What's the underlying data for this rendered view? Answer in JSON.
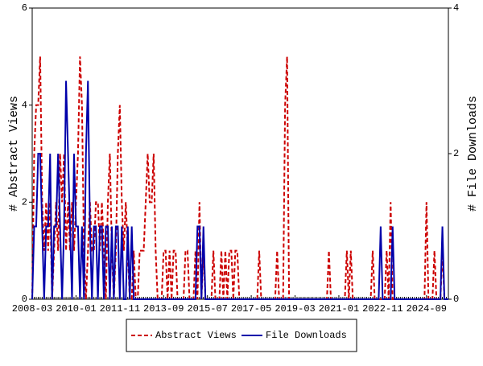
{
  "chart_data": {
    "type": "line",
    "ylabel": "# Abstract Views",
    "y2label": "# File Downloads",
    "categories": [
      "2008-03",
      null,
      null,
      null,
      null,
      null,
      null,
      null,
      null,
      null,
      null,
      null,
      null,
      null,
      null,
      null,
      null,
      null,
      null,
      null,
      null,
      null,
      "2010-01",
      null,
      null,
      null,
      null,
      null,
      null,
      null,
      null,
      null,
      null,
      null,
      null,
      null,
      null,
      null,
      null,
      null,
      null,
      null,
      null,
      null,
      "2011-11",
      null,
      null,
      null,
      null,
      null,
      null,
      null,
      null,
      null,
      null,
      null,
      null,
      null,
      null,
      null,
      null,
      null,
      null,
      null,
      null,
      null,
      "2013-09",
      null,
      null,
      null,
      null,
      null,
      null,
      null,
      null,
      null,
      null,
      null,
      null,
      null,
      null,
      null,
      null,
      null,
      null,
      null,
      null,
      null,
      "2015-07",
      null,
      null,
      null,
      null,
      null,
      null,
      null,
      null,
      null,
      null,
      null,
      null,
      null,
      null,
      null,
      null,
      null,
      null,
      null,
      null,
      null,
      "2017-05",
      null,
      null,
      null,
      null,
      null,
      null,
      null,
      null,
      null,
      null,
      null,
      null,
      null,
      null,
      null,
      null,
      null,
      null,
      null,
      null,
      null,
      "2019-03",
      null,
      null,
      null,
      null,
      null,
      null,
      null,
      null,
      null,
      null,
      null,
      null,
      null,
      null,
      null,
      null,
      null,
      null,
      null,
      null,
      null,
      "2021-01",
      null,
      null,
      null,
      null,
      null,
      null,
      null,
      null,
      null,
      null,
      null,
      null,
      null,
      null,
      null,
      null,
      null,
      null,
      null,
      null,
      null,
      "2022-11",
      null,
      null,
      null,
      null,
      null,
      null,
      null,
      null,
      null,
      null,
      null,
      null,
      null,
      null,
      null,
      null,
      null,
      null,
      null,
      null,
      null,
      "2024-09",
      null,
      null,
      null,
      null,
      null,
      null,
      null,
      null,
      null,
      null,
      null
    ],
    "series": [
      {
        "name": "Abstract Views",
        "color": "#cc0000",
        "dashed": true,
        "values": [
          0,
          3,
          4,
          4,
          5,
          2,
          1,
          2,
          1,
          2,
          0,
          1,
          2,
          1,
          3,
          2,
          3,
          1,
          2,
          1,
          2,
          1,
          2,
          3,
          5,
          4,
          1,
          0,
          1,
          2,
          1,
          1,
          2,
          2,
          1,
          2,
          1,
          0,
          2,
          3,
          1,
          0,
          1,
          3,
          4,
          2,
          1,
          2,
          1,
          0,
          0,
          1,
          0,
          0,
          1,
          1,
          1,
          2,
          3,
          2,
          2,
          3,
          1,
          0,
          0,
          0,
          1,
          1,
          0,
          1,
          0,
          1,
          1,
          0,
          0,
          0,
          0,
          1,
          1,
          0,
          0,
          0,
          1,
          0,
          2,
          0,
          1,
          0,
          0,
          0,
          0,
          1,
          0,
          0,
          0,
          1,
          0,
          1,
          0,
          1,
          1,
          0,
          1,
          1,
          0,
          0,
          0,
          0,
          0,
          0,
          0,
          0,
          0,
          0,
          1,
          0,
          0,
          0,
          0,
          0,
          0,
          0,
          0,
          1,
          0,
          0,
          0,
          4,
          5,
          0,
          0,
          0,
          0,
          0,
          0,
          0,
          0,
          0,
          0,
          0,
          0,
          0,
          0,
          0,
          0,
          0,
          0,
          0,
          0,
          1,
          0,
          0,
          0,
          0,
          0,
          0,
          0,
          0,
          1,
          0,
          1,
          0,
          0,
          0,
          0,
          0,
          0,
          0,
          0,
          0,
          0,
          1,
          0,
          0,
          0,
          0,
          0,
          0,
          1,
          0,
          2,
          0,
          0,
          0,
          0,
          0,
          0,
          0,
          0,
          0,
          0,
          0,
          0,
          0,
          0,
          0,
          0,
          0,
          2,
          0,
          0,
          0,
          1,
          0,
          0,
          0,
          1,
          0,
          0,
          0
        ]
      },
      {
        "name": "File Downloads",
        "color": "#0000aa",
        "dashed": false,
        "axis": "y2",
        "values": [
          0,
          1,
          1,
          2,
          2,
          1,
          0,
          1,
          1,
          2,
          0,
          1,
          1,
          2,
          1,
          0,
          1,
          3,
          2,
          1,
          0,
          2,
          1,
          1,
          0,
          1,
          0,
          2,
          3,
          1,
          0,
          1,
          1,
          0,
          1,
          1,
          0,
          1,
          1,
          0,
          1,
          0,
          1,
          1,
          0,
          1,
          0,
          0,
          1,
          0,
          1,
          0,
          0,
          0,
          0,
          0,
          0,
          0,
          0,
          0,
          0,
          0,
          0,
          0,
          0,
          0,
          0,
          0,
          0,
          0,
          0,
          0,
          0,
          0,
          0,
          0,
          0,
          0,
          0,
          0,
          0,
          0,
          0,
          1,
          1,
          0,
          1,
          0,
          0,
          0,
          0,
          0,
          0,
          0,
          0,
          0,
          0,
          0,
          0,
          0,
          0,
          0,
          0,
          0,
          0,
          0,
          0,
          0,
          0,
          0,
          0,
          0,
          0,
          0,
          0,
          0,
          0,
          0,
          0,
          0,
          0,
          0,
          0,
          0,
          0,
          0,
          0,
          0,
          0,
          0,
          0,
          0,
          0,
          0,
          0,
          0,
          0,
          0,
          0,
          0,
          0,
          0,
          0,
          0,
          0,
          0,
          0,
          0,
          0,
          0,
          0,
          0,
          0,
          0,
          0,
          0,
          0,
          0,
          0,
          0,
          0,
          0,
          0,
          0,
          0,
          0,
          0,
          0,
          0,
          0,
          0,
          0,
          0,
          0,
          0,
          1,
          0,
          0,
          0,
          0,
          0,
          1,
          0,
          0,
          0,
          0,
          0,
          0,
          0,
          0,
          0,
          0,
          0,
          0,
          0,
          0,
          0,
          0,
          0,
          0,
          0,
          0,
          0,
          0,
          0,
          0,
          1,
          0,
          0,
          0
        ]
      }
    ],
    "ylim": [
      0,
      6
    ],
    "yticks": [
      0,
      2,
      4,
      6
    ],
    "y2lim": [
      0,
      4
    ],
    "y2ticks": [
      0,
      2,
      4
    ],
    "legend": "bottom"
  }
}
